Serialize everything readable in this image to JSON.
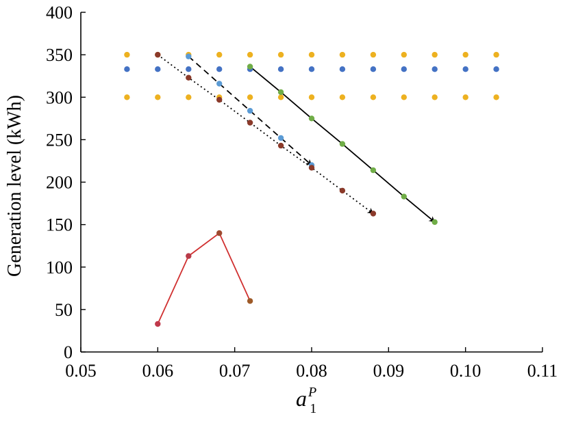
{
  "chart_data": {
    "type": "scatter",
    "title": "",
    "xlabel_main": "a",
    "xlabel_sub": "1",
    "xlabel_sup": "P",
    "ylabel": "Generation level (kWh)",
    "xlim": [
      0.05,
      0.11
    ],
    "ylim": [
      0,
      400
    ],
    "xticks": [
      0.05,
      0.06,
      0.07,
      0.08,
      0.09,
      0.1,
      0.11
    ],
    "xtick_labels": [
      "0.05",
      "0.06",
      "0.07",
      "0.08",
      "0.09",
      "0.10",
      "0.11"
    ],
    "yticks": [
      0,
      50,
      100,
      150,
      200,
      250,
      300,
      350,
      400
    ],
    "ytick_labels": [
      "0",
      "50",
      "100",
      "150",
      "200",
      "250",
      "300",
      "350",
      "400"
    ],
    "grid": false,
    "legend": "none",
    "series": [
      {
        "style": "markers",
        "color": "#edb120",
        "x": [
          0.056,
          0.06,
          0.064,
          0.068,
          0.072,
          0.076,
          0.08,
          0.084,
          0.088,
          0.092,
          0.096,
          0.1,
          0.104
        ],
        "y": [
          350,
          350,
          350,
          350,
          350,
          350,
          350,
          350,
          350,
          350,
          350,
          350,
          350
        ]
      },
      {
        "style": "markers",
        "color": "#4472c4",
        "x": [
          0.056,
          0.06,
          0.064,
          0.068,
          0.072,
          0.076,
          0.08,
          0.084,
          0.088,
          0.092,
          0.096,
          0.1,
          0.104
        ],
        "y": [
          333,
          333,
          333,
          333,
          333,
          333,
          333,
          333,
          333,
          333,
          333,
          333,
          333
        ]
      },
      {
        "style": "markers",
        "color": "#edb120",
        "x": [
          0.056,
          0.06,
          0.064,
          0.068,
          0.072,
          0.076,
          0.08,
          0.084,
          0.088,
          0.092,
          0.096,
          0.1,
          0.104
        ],
        "y": [
          300,
          300,
          300,
          300,
          300,
          300,
          300,
          300,
          300,
          300,
          300,
          300,
          300
        ]
      },
      {
        "style": "dashed-arrow",
        "line_color": "#000000",
        "color": "#5b9bd5",
        "x": [
          0.064,
          0.068,
          0.072,
          0.076,
          0.08
        ],
        "y": [
          348,
          316,
          284,
          252,
          220
        ]
      },
      {
        "style": "dotted-arrow",
        "line_color": "#000000",
        "color": "#8b3a2a",
        "x": [
          0.06,
          0.064,
          0.068,
          0.072,
          0.076,
          0.08,
          0.084,
          0.088
        ],
        "y": [
          350,
          323,
          297,
          270,
          243,
          217,
          190,
          163
        ]
      },
      {
        "style": "solid-arrow",
        "line_color": "#000000",
        "color": "#70ad47",
        "x": [
          0.072,
          0.076,
          0.08,
          0.084,
          0.088,
          0.092,
          0.096
        ],
        "y": [
          336,
          306,
          275,
          245,
          214,
          183,
          153
        ]
      },
      {
        "style": "solid-line",
        "line_color": "#d03030",
        "colors": [
          "#c0394b",
          "#b83a48",
          "#9e4a30",
          "#9e5a28"
        ],
        "x": [
          0.06,
          0.064,
          0.068,
          0.072
        ],
        "y": [
          33,
          113,
          140,
          60
        ]
      }
    ]
  }
}
